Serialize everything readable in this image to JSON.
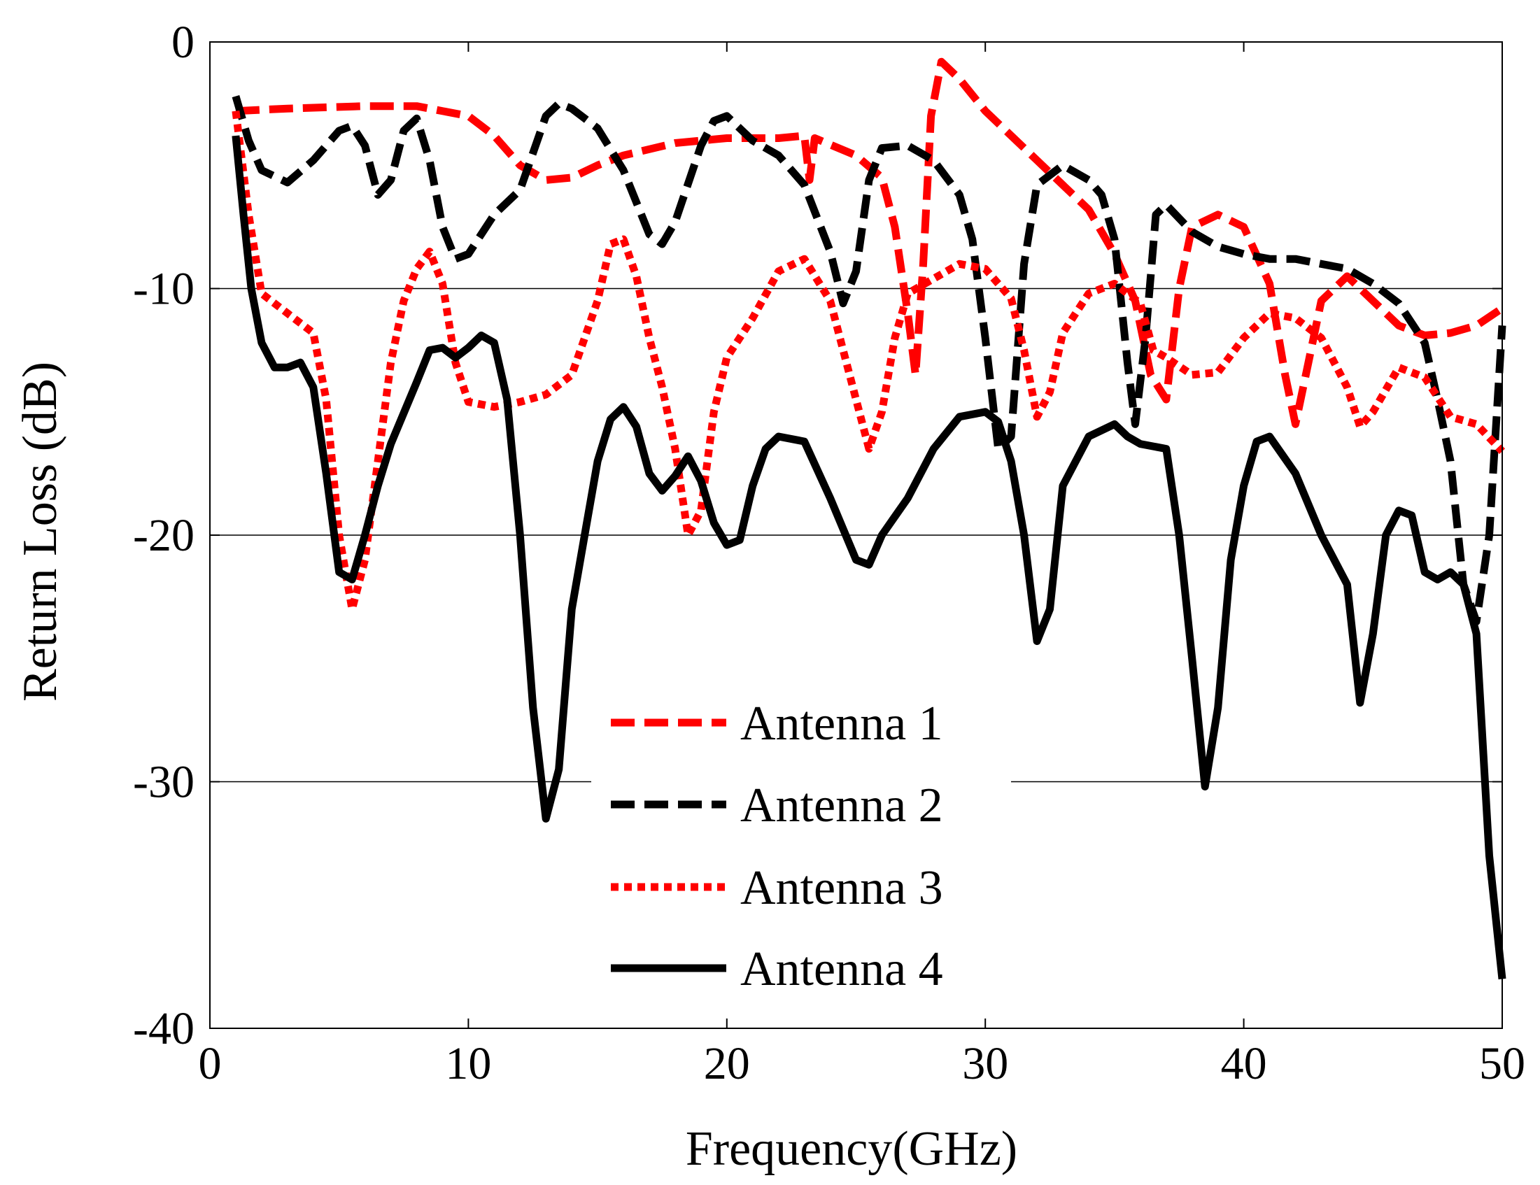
{
  "chart_data": {
    "type": "line",
    "title": "",
    "xlabel": "Frequency(GHz)",
    "ylabel": "Return Loss (dB)",
    "xlim": [
      0,
      50
    ],
    "ylim": [
      -40,
      0
    ],
    "xticks": [
      0,
      10,
      20,
      30,
      40,
      50
    ],
    "yticks": [
      0,
      -10,
      -20,
      -30,
      -40
    ],
    "grid": "horizontal",
    "legend_position": "bottom-center",
    "series": [
      {
        "name": "Antenna 1",
        "color": "#ff0000",
        "style": "dashed",
        "points": [
          [
            1,
            -2.8
          ],
          [
            3,
            -2.7
          ],
          [
            6,
            -2.6
          ],
          [
            8,
            -2.6
          ],
          [
            10,
            -3.0
          ],
          [
            11,
            -3.8
          ],
          [
            12,
            -5.0
          ],
          [
            13,
            -5.6
          ],
          [
            14,
            -5.5
          ],
          [
            15,
            -5.0
          ],
          [
            16,
            -4.6
          ],
          [
            18,
            -4.1
          ],
          [
            20,
            -3.9
          ],
          [
            22,
            -3.9
          ],
          [
            23,
            -3.8
          ],
          [
            23.2,
            -5.6
          ],
          [
            23.4,
            -3.9
          ],
          [
            25,
            -4.6
          ],
          [
            26,
            -5.5
          ],
          [
            26.5,
            -7.5
          ],
          [
            27,
            -11
          ],
          [
            27.3,
            -13.5
          ],
          [
            27.6,
            -9
          ],
          [
            27.9,
            -3
          ],
          [
            28.3,
            -0.8
          ],
          [
            29,
            -1.5
          ],
          [
            30,
            -2.8
          ],
          [
            32,
            -4.8
          ],
          [
            34,
            -6.8
          ],
          [
            35,
            -8.6
          ],
          [
            35.8,
            -10.5
          ],
          [
            36.4,
            -13.5
          ],
          [
            37,
            -14.5
          ],
          [
            37.5,
            -10
          ],
          [
            38,
            -7.5
          ],
          [
            39,
            -7.0
          ],
          [
            40,
            -7.5
          ],
          [
            41,
            -9.8
          ],
          [
            41.6,
            -13.5
          ],
          [
            42,
            -15.5
          ],
          [
            42.5,
            -13
          ],
          [
            43,
            -10.5
          ],
          [
            44,
            -9.5
          ],
          [
            45,
            -10.5
          ],
          [
            46,
            -11.5
          ],
          [
            47,
            -11.9
          ],
          [
            48,
            -11.8
          ],
          [
            49,
            -11.5
          ],
          [
            50,
            -10.8
          ]
        ]
      },
      {
        "name": "Antenna 2",
        "color": "#000000",
        "style": "dashed",
        "points": [
          [
            1,
            -2.2
          ],
          [
            1.5,
            -4
          ],
          [
            2,
            -5.2
          ],
          [
            3,
            -5.7
          ],
          [
            4,
            -4.8
          ],
          [
            5,
            -3.6
          ],
          [
            5.5,
            -3.4
          ],
          [
            6,
            -4.2
          ],
          [
            6.5,
            -6.2
          ],
          [
            7,
            -5.6
          ],
          [
            7.5,
            -3.6
          ],
          [
            8,
            -3.1
          ],
          [
            8.5,
            -4.8
          ],
          [
            9,
            -7.5
          ],
          [
            9.5,
            -8.8
          ],
          [
            10,
            -8.6
          ],
          [
            11,
            -7
          ],
          [
            12,
            -6
          ],
          [
            12.5,
            -4.5
          ],
          [
            13,
            -3.0
          ],
          [
            13.5,
            -2.5
          ],
          [
            14,
            -2.7
          ],
          [
            15,
            -3.5
          ],
          [
            16,
            -5.2
          ],
          [
            17,
            -7.8
          ],
          [
            17.5,
            -8.2
          ],
          [
            18,
            -7.3
          ],
          [
            19,
            -4.2
          ],
          [
            19.5,
            -3.2
          ],
          [
            20,
            -3.0
          ],
          [
            21,
            -4.0
          ],
          [
            22,
            -4.6
          ],
          [
            23,
            -5.8
          ],
          [
            24,
            -8.5
          ],
          [
            24.5,
            -10.6
          ],
          [
            25,
            -9.3
          ],
          [
            25.5,
            -5.6
          ],
          [
            26,
            -4.3
          ],
          [
            27,
            -4.2
          ],
          [
            28,
            -4.8
          ],
          [
            29,
            -6.2
          ],
          [
            29.5,
            -8
          ],
          [
            30,
            -12
          ],
          [
            30.5,
            -16.5
          ],
          [
            31,
            -16
          ],
          [
            31.5,
            -9
          ],
          [
            32,
            -5.8
          ],
          [
            33,
            -5
          ],
          [
            34,
            -5.6
          ],
          [
            34.5,
            -6.2
          ],
          [
            35,
            -8
          ],
          [
            35.5,
            -13
          ],
          [
            35.8,
            -15.5
          ],
          [
            36.2,
            -12
          ],
          [
            36.6,
            -7
          ],
          [
            37,
            -6.6
          ],
          [
            38,
            -7.7
          ],
          [
            39,
            -8.3
          ],
          [
            40,
            -8.6
          ],
          [
            41,
            -8.8
          ],
          [
            42,
            -8.8
          ],
          [
            43,
            -9.0
          ],
          [
            44,
            -9.2
          ],
          [
            45,
            -9.8
          ],
          [
            46,
            -10.6
          ],
          [
            47,
            -12.2
          ],
          [
            47.5,
            -14.5
          ],
          [
            48,
            -17
          ],
          [
            48.5,
            -22
          ],
          [
            49,
            -23.5
          ],
          [
            49.5,
            -20
          ],
          [
            50,
            -11.5
          ]
        ]
      },
      {
        "name": "Antenna 3",
        "color": "#ff0000",
        "style": "dotted",
        "points": [
          [
            1,
            -2.8
          ],
          [
            1.5,
            -7
          ],
          [
            2,
            -10.2
          ],
          [
            3,
            -11
          ],
          [
            4,
            -11.8
          ],
          [
            4.5,
            -14.5
          ],
          [
            5,
            -20
          ],
          [
            5.5,
            -23
          ],
          [
            6,
            -21
          ],
          [
            6.5,
            -17
          ],
          [
            7,
            -13
          ],
          [
            7.5,
            -10.5
          ],
          [
            8,
            -9.2
          ],
          [
            8.5,
            -8.5
          ],
          [
            9,
            -9.8
          ],
          [
            9.5,
            -13
          ],
          [
            10,
            -14.6
          ],
          [
            11,
            -14.8
          ],
          [
            12,
            -14.6
          ],
          [
            13,
            -14.3
          ],
          [
            14,
            -13.5
          ],
          [
            15,
            -10.5
          ],
          [
            15.5,
            -8.2
          ],
          [
            16,
            -8.0
          ],
          [
            16.5,
            -9.5
          ],
          [
            17,
            -12
          ],
          [
            17.5,
            -14
          ],
          [
            18,
            -16.5
          ],
          [
            18.5,
            -20
          ],
          [
            19,
            -19
          ],
          [
            19.5,
            -15
          ],
          [
            20,
            -12.8
          ],
          [
            21,
            -11.2
          ],
          [
            22,
            -9.3
          ],
          [
            23,
            -8.8
          ],
          [
            24,
            -10.5
          ],
          [
            25,
            -14.5
          ],
          [
            25.5,
            -16.5
          ],
          [
            26,
            -15
          ],
          [
            26.5,
            -12
          ],
          [
            27,
            -10.2
          ],
          [
            28,
            -9.6
          ],
          [
            29,
            -9.0
          ],
          [
            30,
            -9.2
          ],
          [
            31,
            -10.4
          ],
          [
            31.5,
            -12.5
          ],
          [
            32,
            -15.2
          ],
          [
            32.5,
            -14.2
          ],
          [
            33,
            -11.8
          ],
          [
            34,
            -10.2
          ],
          [
            35,
            -9.8
          ],
          [
            36,
            -10.6
          ],
          [
            36.5,
            -12.5
          ],
          [
            37,
            -12.8
          ],
          [
            38,
            -13.5
          ],
          [
            39,
            -13.4
          ],
          [
            40,
            -12
          ],
          [
            41,
            -11
          ],
          [
            42,
            -11.2
          ],
          [
            43,
            -12
          ],
          [
            44,
            -14
          ],
          [
            44.5,
            -15.6
          ],
          [
            45,
            -15
          ],
          [
            46,
            -13.2
          ],
          [
            47,
            -13.6
          ],
          [
            48,
            -15.2
          ],
          [
            49,
            -15.5
          ],
          [
            50,
            -16.6
          ]
        ]
      },
      {
        "name": "Antenna 4",
        "color": "#000000",
        "style": "solid",
        "points": [
          [
            1,
            -3.8
          ],
          [
            1.3,
            -7
          ],
          [
            1.6,
            -10
          ],
          [
            2,
            -12.2
          ],
          [
            2.5,
            -13.2
          ],
          [
            3,
            -13.2
          ],
          [
            3.5,
            -13.0
          ],
          [
            4,
            -14
          ],
          [
            4.5,
            -17.5
          ],
          [
            5,
            -21.5
          ],
          [
            5.5,
            -21.8
          ],
          [
            6,
            -20
          ],
          [
            6.5,
            -18
          ],
          [
            7,
            -16.3
          ],
          [
            8,
            -13.8
          ],
          [
            8.5,
            -12.5
          ],
          [
            9,
            -12.4
          ],
          [
            9.5,
            -12.8
          ],
          [
            10,
            -12.4
          ],
          [
            10.5,
            -11.9
          ],
          [
            11,
            -12.2
          ],
          [
            11.5,
            -14.5
          ],
          [
            12,
            -20
          ],
          [
            12.5,
            -27
          ],
          [
            13,
            -31.5
          ],
          [
            13.5,
            -29.5
          ],
          [
            14,
            -23
          ],
          [
            14.5,
            -20
          ],
          [
            15,
            -17
          ],
          [
            15.5,
            -15.3
          ],
          [
            16,
            -14.8
          ],
          [
            16.5,
            -15.6
          ],
          [
            17,
            -17.5
          ],
          [
            17.5,
            -18.2
          ],
          [
            18,
            -17.6
          ],
          [
            18.5,
            -16.8
          ],
          [
            19,
            -17.8
          ],
          [
            19.5,
            -19.5
          ],
          [
            20,
            -20.4
          ],
          [
            20.5,
            -20.2
          ],
          [
            21,
            -18
          ],
          [
            21.5,
            -16.5
          ],
          [
            22,
            -16.0
          ],
          [
            23,
            -16.2
          ],
          [
            24,
            -18.5
          ],
          [
            25,
            -21
          ],
          [
            25.5,
            -21.2
          ],
          [
            26,
            -20
          ],
          [
            27,
            -18.5
          ],
          [
            28,
            -16.5
          ],
          [
            29,
            -15.2
          ],
          [
            30,
            -15.0
          ],
          [
            30.5,
            -15.4
          ],
          [
            31,
            -17
          ],
          [
            31.5,
            -20
          ],
          [
            32,
            -24.3
          ],
          [
            32.5,
            -23
          ],
          [
            33,
            -18
          ],
          [
            34,
            -16.0
          ],
          [
            35,
            -15.5
          ],
          [
            35.5,
            -16.0
          ],
          [
            36,
            -16.3
          ],
          [
            37,
            -16.5
          ],
          [
            37.5,
            -20
          ],
          [
            38,
            -25
          ],
          [
            38.5,
            -30.2
          ],
          [
            39,
            -27
          ],
          [
            39.5,
            -21
          ],
          [
            40,
            -18
          ],
          [
            40.5,
            -16.2
          ],
          [
            41,
            -16.0
          ],
          [
            42,
            -17.5
          ],
          [
            43,
            -20
          ],
          [
            44,
            -22
          ],
          [
            44.5,
            -26.8
          ],
          [
            45,
            -24
          ],
          [
            45.5,
            -20
          ],
          [
            46,
            -19
          ],
          [
            46.5,
            -19.2
          ],
          [
            47,
            -21.5
          ],
          [
            47.5,
            -21.8
          ],
          [
            48,
            -21.5
          ],
          [
            48.5,
            -22
          ],
          [
            49,
            -24
          ],
          [
            49.5,
            -33
          ],
          [
            50,
            -38
          ]
        ]
      }
    ]
  }
}
